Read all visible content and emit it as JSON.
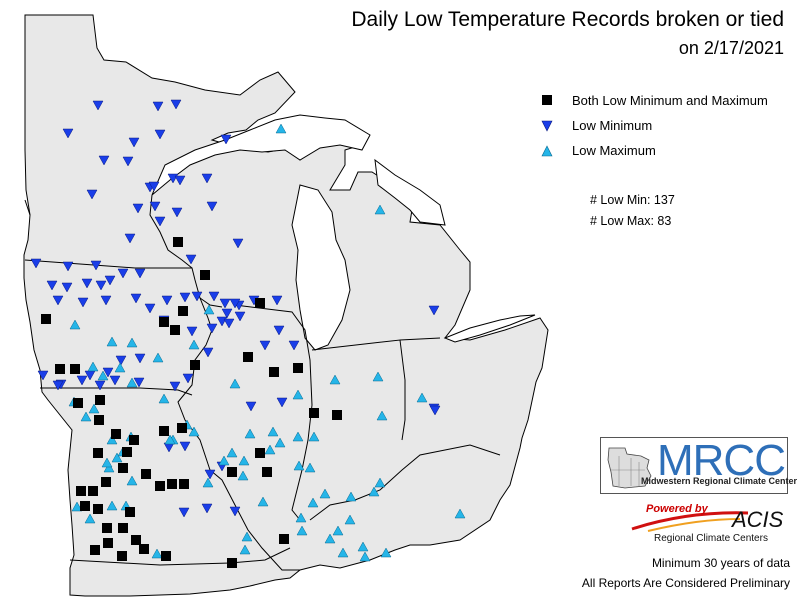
{
  "title": "Daily Low Temperature Records broken or tied",
  "subtitle": "on 2/17/2021",
  "legend": [
    {
      "label": "Both Low Minimum and Maximum",
      "symbol": "square",
      "color": "#000000"
    },
    {
      "label": "Low Minimum",
      "symbol": "triangle-down",
      "color": "#1a3ee8"
    },
    {
      "label": "Low Maximum",
      "symbol": "triangle-up",
      "color": "#25b5e8"
    }
  ],
  "counts": {
    "low_min": "# Low Min: 137",
    "low_max": "# Low Max: 83"
  },
  "logo": {
    "name": "MRCC",
    "subtitle": "Midwestern Regional Climate Center"
  },
  "acis": {
    "powered": "Powered by",
    "name": "ACIS",
    "subtitle": "Regional Climate Centers"
  },
  "footer": {
    "line1": "Minimum 30 years of data",
    "line2": "All Reports Are Considered Preliminary"
  },
  "colors": {
    "land": "#e8e8e8",
    "border": "#000000",
    "lake": "#ffffff",
    "both": "#000000",
    "low_min": "#1a3ee8",
    "low_max": "#25b5e8"
  },
  "markers": {
    "both": [
      [
        178,
        242
      ],
      [
        205,
        275
      ],
      [
        260,
        303
      ],
      [
        46,
        319
      ],
      [
        183,
        311
      ],
      [
        164,
        322
      ],
      [
        175,
        330
      ],
      [
        195,
        365
      ],
      [
        248,
        357
      ],
      [
        274,
        372
      ],
      [
        298,
        368
      ],
      [
        60,
        369
      ],
      [
        75,
        369
      ],
      [
        78,
        403
      ],
      [
        100,
        400
      ],
      [
        164,
        431
      ],
      [
        182,
        428
      ],
      [
        314,
        413
      ],
      [
        337,
        415
      ],
      [
        99,
        420
      ],
      [
        116,
        434
      ],
      [
        134,
        440
      ],
      [
        98,
        453
      ],
      [
        127,
        452
      ],
      [
        146,
        474
      ],
      [
        123,
        468
      ],
      [
        172,
        484
      ],
      [
        184,
        484
      ],
      [
        160,
        486
      ],
      [
        81,
        491
      ],
      [
        93,
        491
      ],
      [
        106,
        482
      ],
      [
        85,
        506
      ],
      [
        98,
        509
      ],
      [
        130,
        512
      ],
      [
        107,
        528
      ],
      [
        123,
        528
      ],
      [
        136,
        540
      ],
      [
        108,
        543
      ],
      [
        144,
        549
      ],
      [
        95,
        550
      ],
      [
        122,
        556
      ],
      [
        166,
        556
      ],
      [
        260,
        453
      ],
      [
        267,
        472
      ],
      [
        232,
        472
      ],
      [
        232,
        563
      ],
      [
        284,
        539
      ]
    ],
    "low_min": [
      [
        98,
        105
      ],
      [
        158,
        106
      ],
      [
        176,
        104
      ],
      [
        226,
        139
      ],
      [
        68,
        133
      ],
      [
        134,
        142
      ],
      [
        160,
        134
      ],
      [
        104,
        160
      ],
      [
        128,
        161
      ],
      [
        173,
        178
      ],
      [
        180,
        180
      ],
      [
        150,
        187
      ],
      [
        212,
        206
      ],
      [
        138,
        208
      ],
      [
        155,
        206
      ],
      [
        92,
        194
      ],
      [
        207,
        178
      ],
      [
        177,
        212
      ],
      [
        160,
        221
      ],
      [
        130,
        238
      ],
      [
        191,
        259
      ],
      [
        238,
        243
      ],
      [
        68,
        266
      ],
      [
        96,
        265
      ],
      [
        123,
        273
      ],
      [
        140,
        273
      ],
      [
        36,
        263
      ],
      [
        87,
        283
      ],
      [
        101,
        285
      ],
      [
        110,
        280
      ],
      [
        52,
        285
      ],
      [
        67,
        287
      ],
      [
        58,
        300
      ],
      [
        83,
        302
      ],
      [
        106,
        300
      ],
      [
        136,
        298
      ],
      [
        167,
        300
      ],
      [
        185,
        297
      ],
      [
        197,
        296
      ],
      [
        214,
        296
      ],
      [
        225,
        303
      ],
      [
        239,
        305
      ],
      [
        227,
        313
      ],
      [
        240,
        316
      ],
      [
        254,
        300
      ],
      [
        277,
        300
      ],
      [
        150,
        308
      ],
      [
        164,
        320
      ],
      [
        192,
        331
      ],
      [
        222,
        321
      ],
      [
        212,
        328
      ],
      [
        229,
        323
      ],
      [
        279,
        330
      ],
      [
        294,
        345
      ],
      [
        265,
        345
      ],
      [
        121,
        360
      ],
      [
        140,
        358
      ],
      [
        61,
        384
      ],
      [
        82,
        380
      ],
      [
        100,
        385
      ],
      [
        115,
        380
      ],
      [
        139,
        382
      ],
      [
        188,
        378
      ],
      [
        175,
        386
      ],
      [
        208,
        352
      ],
      [
        251,
        406
      ],
      [
        282,
        402
      ],
      [
        169,
        447
      ],
      [
        185,
        446
      ],
      [
        222,
        466
      ],
      [
        210,
        474
      ],
      [
        207,
        508
      ],
      [
        184,
        512
      ],
      [
        235,
        511
      ],
      [
        43,
        375
      ],
      [
        58,
        385
      ],
      [
        90,
        375
      ],
      [
        108,
        372
      ],
      [
        434,
        310
      ],
      [
        434,
        408
      ],
      [
        435,
        410
      ],
      [
        154,
        186
      ],
      [
        235,
        303
      ]
    ],
    "low_max": [
      [
        281,
        129
      ],
      [
        380,
        210
      ],
      [
        75,
        325
      ],
      [
        112,
        342
      ],
      [
        132,
        343
      ],
      [
        158,
        358
      ],
      [
        93,
        367
      ],
      [
        103,
        376
      ],
      [
        120,
        368
      ],
      [
        132,
        383
      ],
      [
        194,
        345
      ],
      [
        209,
        310
      ],
      [
        298,
        395
      ],
      [
        335,
        380
      ],
      [
        378,
        377
      ],
      [
        382,
        416
      ],
      [
        422,
        398
      ],
      [
        314,
        437
      ],
      [
        310,
        468
      ],
      [
        325,
        494
      ],
      [
        374,
        492
      ],
      [
        380,
        483
      ],
      [
        351,
        497
      ],
      [
        313,
        503
      ],
      [
        350,
        520
      ],
      [
        338,
        531
      ],
      [
        302,
        531
      ],
      [
        343,
        553
      ],
      [
        363,
        547
      ],
      [
        365,
        557
      ],
      [
        386,
        553
      ],
      [
        330,
        539
      ],
      [
        460,
        514
      ],
      [
        250,
        434
      ],
      [
        232,
        453
      ],
      [
        244,
        461
      ],
      [
        224,
        461
      ],
      [
        270,
        450
      ],
      [
        263,
        502
      ],
      [
        247,
        537
      ],
      [
        245,
        550
      ],
      [
        243,
        476
      ],
      [
        280,
        443
      ],
      [
        299,
        466
      ],
      [
        273,
        432
      ],
      [
        298,
        437
      ],
      [
        109,
        468
      ],
      [
        112,
        440
      ],
      [
        132,
        481
      ],
      [
        117,
        458
      ],
      [
        173,
        440
      ],
      [
        194,
        432
      ],
      [
        86,
        417
      ],
      [
        107,
        463
      ],
      [
        126,
        506
      ],
      [
        77,
        507
      ],
      [
        112,
        506
      ],
      [
        157,
        554
      ],
      [
        170,
        440
      ],
      [
        235,
        384
      ],
      [
        187,
        425
      ],
      [
        94,
        409
      ],
      [
        90,
        519
      ],
      [
        131,
        437
      ],
      [
        74,
        402
      ],
      [
        123,
        452
      ],
      [
        208,
        483
      ],
      [
        164,
        399
      ],
      [
        301,
        518
      ]
    ]
  }
}
